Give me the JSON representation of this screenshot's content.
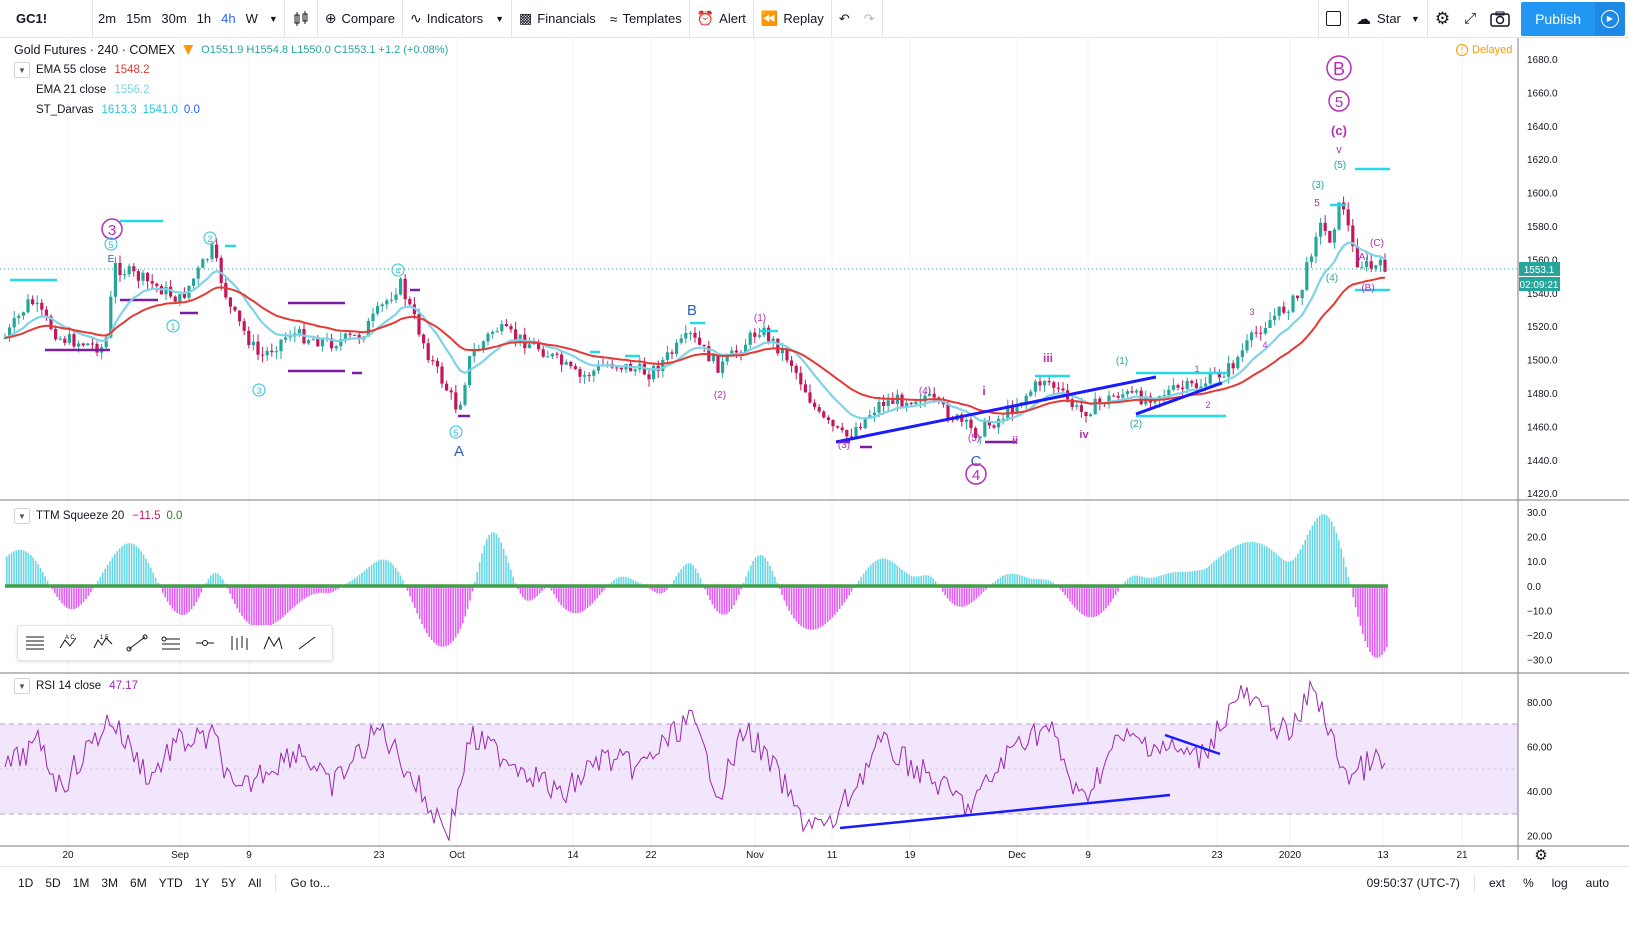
{
  "toolbar": {
    "symbol": "GC1!",
    "intervals": [
      "2m",
      "15m",
      "30m",
      "1h",
      "4h",
      "W"
    ],
    "active_interval": "4h",
    "compare": "Compare",
    "indicators": "Indicators",
    "financials": "Financials",
    "templates": "Templates",
    "alert": "Alert",
    "replay": "Replay",
    "layout_name": "Star",
    "publish": "Publish"
  },
  "legend": {
    "title": "Gold Futures · 240 · COMEX",
    "ohlc": "O1551.9  H1554.8  L1550.0  C1553.1  +1.2 (+0.08%)",
    "ema55_label": "EMA 55 close",
    "ema55_value": "1548.2",
    "ema21_label": "EMA 21 close",
    "ema21_value": "1556.2",
    "darvas_label": "ST_Darvas",
    "darvas_v1": "1613.3",
    "darvas_v2": "1541.0",
    "darvas_v3": "0.0",
    "ttm_label": "TTM Squeeze 20",
    "ttm_v1": "−11.5",
    "ttm_v2": "0.0",
    "rsi_label": "RSI 14 close",
    "rsi_value": "47.17",
    "delayed": "Delayed"
  },
  "price_axis": {
    "ticks": [
      "1680.0",
      "1660.0",
      "1640.0",
      "1620.0",
      "1600.0",
      "1580.0",
      "1560.0",
      "1540.0",
      "1520.0",
      "1500.0",
      "1480.0",
      "1460.0",
      "1440.0",
      "1420.0"
    ],
    "last_price": "1553.1",
    "countdown": "02:09:21"
  },
  "ttm_axis": {
    "ticks": [
      "30.0",
      "20.0",
      "10.0",
      "0.0",
      "−10.0",
      "−20.0",
      "−30.0"
    ]
  },
  "rsi_axis": {
    "ticks": [
      "80.00",
      "60.00",
      "40.00",
      "20.00"
    ]
  },
  "time_axis": {
    "labels": [
      "20",
      "Sep",
      "9",
      "23",
      "Oct",
      "14",
      "22",
      "Nov",
      "11",
      "19",
      "Dec",
      "9",
      "23",
      "2020",
      "13",
      "21"
    ]
  },
  "wave_labels": {
    "major_B": "B",
    "major_5": "5",
    "major_3": "3",
    "major_4": "4",
    "c_small": "(c)",
    "v_small": "v",
    "A": "A",
    "B": "B",
    "C": "C",
    "iii": "iii",
    "iv": "iv",
    "i": "i",
    "ii": "ii",
    "p1": "(1)",
    "p2": "(2)",
    "p3": "(3)",
    "p4": "(4)",
    "p5": "(5)",
    "pA": "(A)",
    "pB": "(B)",
    "pC": "(C)",
    "n1": "1",
    "n2": "2",
    "n3": "3",
    "n4": "4",
    "n5": "5",
    "c1": "1",
    "c2": "2",
    "c3": "3",
    "c4": "4",
    "c5": "5",
    "E": "E"
  },
  "bottombar": {
    "ranges": [
      "1D",
      "5D",
      "1M",
      "3M",
      "6M",
      "YTD",
      "1Y",
      "5Y",
      "All"
    ],
    "goto": "Go to...",
    "time": "09:50:37 (UTC-7)",
    "ext": "ext",
    "pct": "%",
    "log": "log",
    "auto": "auto"
  },
  "colors": {
    "ema55": "#e53935",
    "ema21": "#7ed4e6",
    "darvas": "#26d9e6",
    "wave_purple": "#b52fb5",
    "wave_blue": "#2b5fbd",
    "trend_blue": "#1a1aff",
    "up_bar": "#26a69a",
    "down_bar": "#c2185b",
    "ttm_pos": "#4dd0e1",
    "ttm_neg": "#e040fb",
    "rsi_line": "#9c27b0",
    "rsi_band": "#f1e6fb"
  }
}
